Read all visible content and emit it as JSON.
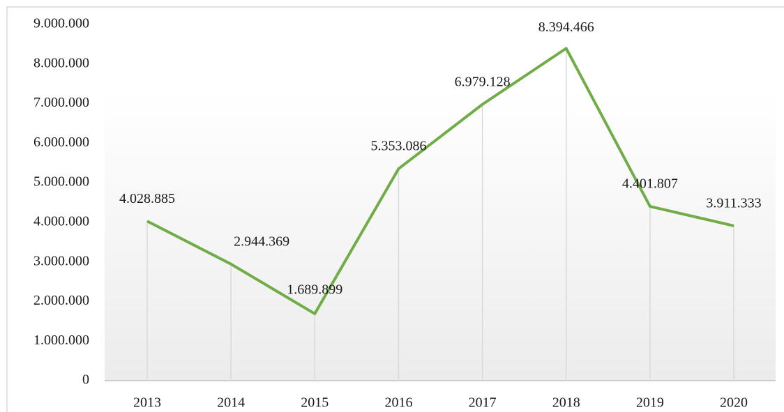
{
  "chart_data": {
    "type": "line",
    "categories": [
      "2013",
      "2014",
      "2015",
      "2016",
      "2017",
      "2018",
      "2019",
      "2020"
    ],
    "series": [
      {
        "color": "#70ad47",
        "values": [
          4028885,
          2944369,
          1689899,
          5353086,
          6979128,
          8394466,
          4401807,
          3911333
        ],
        "value_labels": [
          "4.028.885",
          "2.944.369",
          "1.689.899",
          "5.353.086",
          "6.979.128",
          "8.394.466",
          "4.401.807",
          "3.911.333"
        ]
      }
    ],
    "ylim": [
      0,
      9000000
    ],
    "yticks": [
      0,
      {
        "value": 1000000,
        "label": "1.000.000"
      },
      {
        "value": 2000000,
        "label": "2.000.000"
      },
      {
        "value": 3000000,
        "label": "3.000.000"
      },
      {
        "value": 4000000,
        "label": "4.000.000"
      },
      {
        "value": 5000000,
        "label": "5.000.000"
      },
      {
        "value": 6000000,
        "label": "6.000.000"
      },
      {
        "value": 7000000,
        "label": "7.000.000"
      },
      {
        "value": 8000000,
        "label": "8.000.000"
      },
      {
        "value": 9000000,
        "label": "9.000.000"
      }
    ],
    "drop_lines": true
  }
}
